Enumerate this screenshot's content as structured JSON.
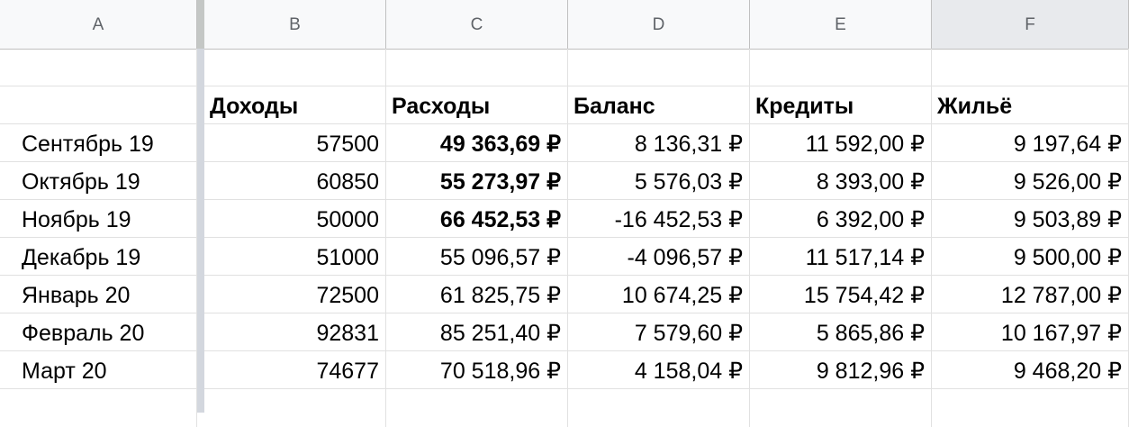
{
  "columns": [
    "A",
    "B",
    "C",
    "D",
    "E",
    "F"
  ],
  "headers": {
    "A": "",
    "B": "Доходы",
    "C": "Расходы",
    "D": "Баланс",
    "E": "Кредиты",
    "F": "Жильё"
  },
  "rows": [
    {
      "month": "Сентябрь 19",
      "income": "57500",
      "expenses": "49 363,69 ₽",
      "balance": "8 136,31 ₽",
      "credits": "11 592,00 ₽",
      "housing": "9 197,64 ₽",
      "expenses_bold": true
    },
    {
      "month": "Октябрь 19",
      "income": "60850",
      "expenses": "55 273,97 ₽",
      "balance": "5 576,03 ₽",
      "credits": "8 393,00 ₽",
      "housing": "9 526,00 ₽",
      "expenses_bold": true
    },
    {
      "month": "Ноябрь 19",
      "income": "50000",
      "expenses": "66 452,53 ₽",
      "balance": "-16 452,53 ₽",
      "credits": "6 392,00 ₽",
      "housing": "9 503,89 ₽",
      "expenses_bold": true
    },
    {
      "month": "Декабрь 19",
      "income": "51000",
      "expenses": "55 096,57 ₽",
      "balance": "-4 096,57 ₽",
      "credits": "11 517,14 ₽",
      "housing": "9 500,00 ₽",
      "expenses_bold": false
    },
    {
      "month": "Январь 20",
      "income": "72500",
      "expenses": "61 825,75 ₽",
      "balance": "10 674,25 ₽",
      "credits": "15 754,42 ₽",
      "housing": "12 787,00 ₽",
      "expenses_bold": false
    },
    {
      "month": "Февраль 20",
      "income": "92831",
      "expenses": "85 251,40 ₽",
      "balance": "7 579,60 ₽",
      "credits": "5 865,86 ₽",
      "housing": "10 167,97 ₽",
      "expenses_bold": false
    },
    {
      "month": "Март 20",
      "income": "74677",
      "expenses": "70 518,96 ₽",
      "balance": "4 158,04 ₽",
      "credits": "9 812,96 ₽",
      "housing": "9 468,20 ₽",
      "expenses_bold": false
    }
  ],
  "selected_column": "F"
}
